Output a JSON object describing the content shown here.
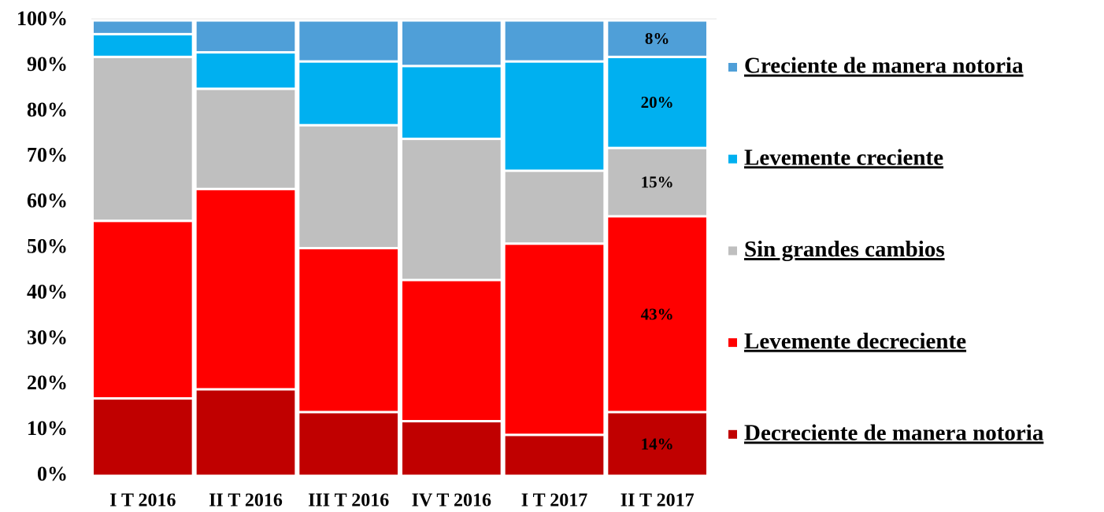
{
  "chart_data": {
    "type": "stacked_bar_100",
    "categories": [
      "I T 2016",
      "II T 2016",
      "III T 2016",
      "IV T 2016",
      "I T 2017",
      "II T 2017"
    ],
    "series": [
      {
        "name": "Decreciente de manera notoria",
        "color": "#c00000",
        "values": [
          17,
          19,
          14,
          12,
          9,
          14
        ],
        "value_labels": [
          null,
          null,
          null,
          null,
          null,
          "14%"
        ]
      },
      {
        "name": "Levemente decreciente",
        "color": "#ff0000",
        "values": [
          39,
          44,
          36,
          31,
          42,
          43
        ],
        "value_labels": [
          null,
          null,
          null,
          null,
          null,
          "43%"
        ]
      },
      {
        "name": "Sin grandes cambios",
        "color": "#bfbfbf",
        "values": [
          36,
          22,
          27,
          31,
          16,
          15
        ],
        "value_labels": [
          null,
          null,
          null,
          null,
          null,
          "15%"
        ]
      },
      {
        "name": "Levemente creciente",
        "color": "#00b0f0",
        "values": [
          5,
          8,
          14,
          16,
          24,
          20
        ],
        "value_labels": [
          null,
          null,
          null,
          null,
          null,
          "20%"
        ]
      },
      {
        "name": "Creciente de manera notoria",
        "color": "#4f9fd8",
        "values": [
          3,
          7,
          9,
          10,
          9,
          8
        ],
        "value_labels": [
          null,
          null,
          null,
          null,
          null,
          "8%"
        ]
      }
    ],
    "ylim": [
      0,
      100
    ],
    "yticks": [
      {
        "value": 0,
        "label": "0%"
      },
      {
        "value": 10,
        "label": "10%"
      },
      {
        "value": 20,
        "label": "20%"
      },
      {
        "value": 30,
        "label": "30%"
      },
      {
        "value": 40,
        "label": "40%"
      },
      {
        "value": 50,
        "label": "50%"
      },
      {
        "value": 60,
        "label": "60%"
      },
      {
        "value": 70,
        "label": "70%"
      },
      {
        "value": 80,
        "label": "80%"
      },
      {
        "value": 90,
        "label": "90%"
      },
      {
        "value": 100,
        "label": "100%"
      }
    ],
    "grid": false,
    "legend": "right"
  }
}
